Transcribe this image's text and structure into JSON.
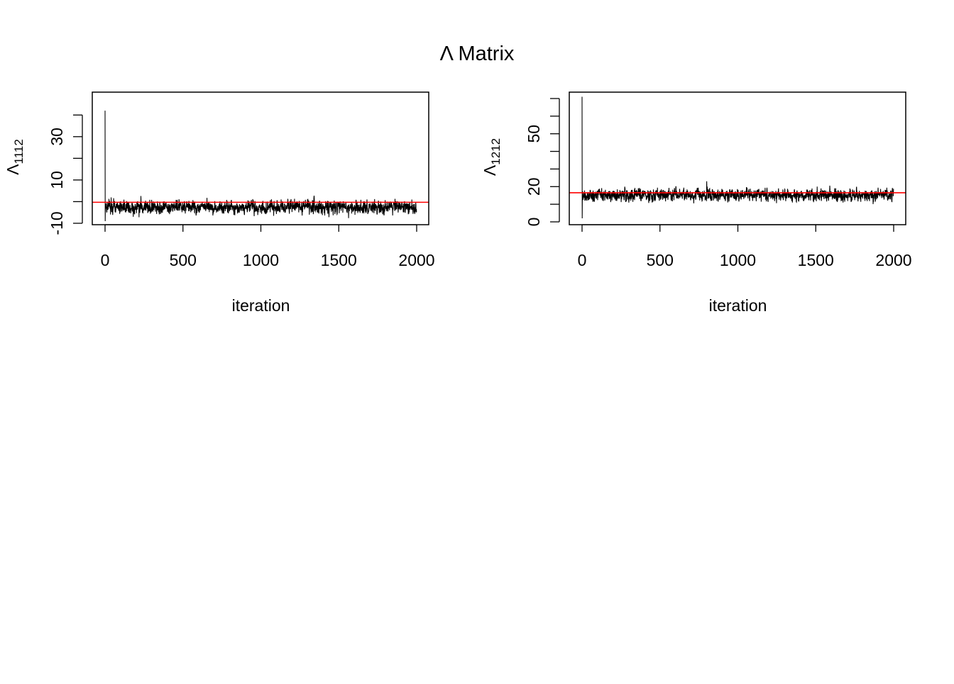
{
  "title": "Λ Matrix",
  "chart_data": [
    {
      "type": "line",
      "xlabel": "iteration",
      "ylabel_base": "Λ",
      "ylabel_sub": "1112",
      "xlim": [
        0,
        2000
      ],
      "ylim": [
        -10,
        45
      ],
      "x_ticks": [
        0,
        500,
        1000,
        1500,
        2000
      ],
      "x_tick_labels": [
        "0",
        "500",
        "1000",
        "1500",
        "2000"
      ],
      "y_ticks": [
        -10,
        0,
        10,
        20,
        30,
        40
      ],
      "y_tick_labels": [
        "-10",
        "",
        "10",
        "",
        "30",
        ""
      ],
      "reference_line": -0.3,
      "reference_color": "#ff0000",
      "trace_color": "#000000",
      "series": [
        {
          "iterations": 2000,
          "start": 42,
          "burn_in_min": -9,
          "mean": -2.5,
          "sd": 1.6,
          "min": -8,
          "max": 3
        }
      ]
    },
    {
      "type": "line",
      "xlabel": "iteration",
      "ylabel_base": "Λ",
      "ylabel_sub": "1212",
      "xlim": [
        0,
        2000
      ],
      "ylim": [
        0,
        70
      ],
      "x_ticks": [
        0,
        500,
        1000,
        1500,
        2000
      ],
      "x_tick_labels": [
        "0",
        "500",
        "1000",
        "1500",
        "2000"
      ],
      "y_ticks": [
        0,
        10,
        20,
        30,
        40,
        50,
        60,
        70
      ],
      "y_tick_labels": [
        "0",
        "",
        "20",
        "",
        "",
        "50",
        "",
        ""
      ],
      "reference_line": 16.5,
      "reference_color": "#ff0000",
      "trace_color": "#000000",
      "series": [
        {
          "iterations": 2000,
          "start": 71,
          "burn_in_min": 2,
          "mean": 15.2,
          "sd": 1.8,
          "min": 10,
          "max": 27
        }
      ]
    }
  ]
}
